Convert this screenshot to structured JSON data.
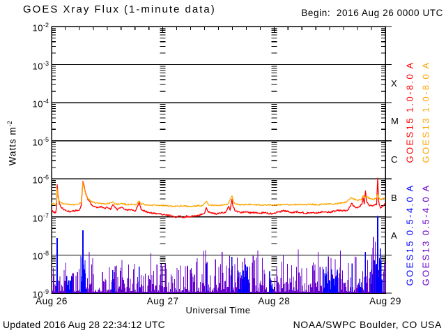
{
  "header": {
    "title": "GOES Xray Flux (1-minute data)",
    "begin": "Begin:  2016 Aug 26 0000 UTC"
  },
  "footer": {
    "updated": "Updated 2016 Aug 28 22:34:12 UTC",
    "source": "NOAA/SWPC Boulder, CO USA"
  },
  "chart_data": {
    "type": "line",
    "title": "GOES Xray Flux (1-minute data)",
    "begin": "2016 Aug 26 0000 UTC",
    "xlabel": "Universal Time",
    "ylabel_base": "Watts m",
    "ylabel_exp": "-2",
    "ylim": [
      1e-09,
      0.01
    ],
    "grid": "solid horizontal decade lines; dashed vertical day lines",
    "x_axis": {
      "total_hours": 72,
      "minor_tick_hours": 3,
      "days": [
        {
          "hour": 0,
          "label": "Aug 26"
        },
        {
          "hour": 24,
          "label": "Aug 27"
        },
        {
          "hour": 48,
          "label": "Aug 28"
        },
        {
          "hour": 72,
          "label": "Aug 29"
        }
      ]
    },
    "y_axis": {
      "exp_max": -2,
      "exp_min": -9,
      "tick_exponents": [
        -2,
        -3,
        -4,
        -5,
        -6,
        -7,
        -8,
        -9
      ]
    },
    "flux_classes": [
      {
        "label": "X",
        "center_exp": -3.5
      },
      {
        "label": "M",
        "center_exp": -4.5
      },
      {
        "label": "C",
        "center_exp": -5.5
      },
      {
        "label": "B",
        "center_exp": -6.5
      },
      {
        "label": "A",
        "center_exp": -7.5
      }
    ],
    "series": [
      {
        "name": "GOES15 1.0-8.0 A",
        "color": "#ff0000",
        "render": "line",
        "jitter_log": 0.022,
        "points": [
          [
            0,
            1.5e-07
          ],
          [
            0.3,
            1.35e-07
          ],
          [
            0.9,
            1.3e-07
          ],
          [
            1.05,
            1.7e-07
          ],
          [
            1.2,
            7e-07
          ],
          [
            1.35,
            4e-07
          ],
          [
            1.7,
            2.2e-07
          ],
          [
            2.2,
            1.7e-07
          ],
          [
            3,
            1.5e-07
          ],
          [
            4,
            1.4e-07
          ],
          [
            5,
            1.45e-07
          ],
          [
            6,
            1.5e-07
          ],
          [
            6.4,
            2e-07
          ],
          [
            6.75,
            8.5e-07
          ],
          [
            7,
            6.5e-07
          ],
          [
            7.4,
            4e-07
          ],
          [
            7.9,
            2.8e-07
          ],
          [
            8.5,
            2.2e-07
          ],
          [
            9.2,
            1.9e-07
          ],
          [
            10,
            1.75e-07
          ],
          [
            10.8,
            1.9e-07
          ],
          [
            11.4,
            1.7e-07
          ],
          [
            12,
            1.8e-07
          ],
          [
            12.7,
            1.6e-07
          ],
          [
            13.2,
            2.1e-07
          ],
          [
            13.6,
            1.8e-07
          ],
          [
            14.2,
            1.55e-07
          ],
          [
            15,
            1.8e-07
          ],
          [
            15.6,
            1.6e-07
          ],
          [
            16.4,
            1.5e-07
          ],
          [
            17.2,
            1.55e-07
          ],
          [
            18,
            1.4e-07
          ],
          [
            18.9,
            2.4e-07
          ],
          [
            19.3,
            1.6e-07
          ],
          [
            20,
            1.45e-07
          ],
          [
            21,
            1.3e-07
          ],
          [
            22,
            1.25e-07
          ],
          [
            23,
            1.2e-07
          ],
          [
            24,
            1.15e-07
          ],
          [
            25,
            1.1e-07
          ],
          [
            26,
            1.05e-07
          ],
          [
            26.8,
            9.8e-08
          ],
          [
            27.6,
            1.05e-07
          ],
          [
            28.4,
            9.6e-08
          ],
          [
            29.2,
            1.05e-07
          ],
          [
            30,
            1.02e-07
          ],
          [
            31,
            1.08e-07
          ],
          [
            32,
            1.12e-07
          ],
          [
            33,
            1.25e-07
          ],
          [
            33.4,
            1.75e-07
          ],
          [
            33.8,
            1.35e-07
          ],
          [
            34.6,
            1.25e-07
          ],
          [
            35.6,
            1.2e-07
          ],
          [
            36.6,
            1.28e-07
          ],
          [
            37.6,
            1.35e-07
          ],
          [
            38.2,
            1.9e-07
          ],
          [
            38.5,
            1.5e-07
          ],
          [
            38.9,
            2.9e-07
          ],
          [
            39.1,
            2e-07
          ],
          [
            39.5,
            1.5e-07
          ],
          [
            40.2,
            1.35e-07
          ],
          [
            41,
            1.3e-07
          ],
          [
            42,
            1.35e-07
          ],
          [
            43,
            1.28e-07
          ],
          [
            44,
            1.32e-07
          ],
          [
            45,
            1.26e-07
          ],
          [
            46,
            1.3e-07
          ],
          [
            47,
            1.22e-07
          ],
          [
            48,
            1.25e-07
          ],
          [
            49,
            1.35e-07
          ],
          [
            50,
            1.45e-07
          ],
          [
            51,
            1.38e-07
          ],
          [
            52,
            1.32e-07
          ],
          [
            53,
            1.38e-07
          ],
          [
            54,
            1.3e-07
          ],
          [
            55,
            1.26e-07
          ],
          [
            56,
            1.32e-07
          ],
          [
            57,
            1.27e-07
          ],
          [
            58,
            1.32e-07
          ],
          [
            59,
            1.38e-07
          ],
          [
            60,
            1.32e-07
          ],
          [
            61,
            1.42e-07
          ],
          [
            62,
            1.5e-07
          ],
          [
            63,
            1.46e-07
          ],
          [
            64,
            1.55e-07
          ],
          [
            64.8,
            2.3e-07
          ],
          [
            65.1,
            1.9e-07
          ],
          [
            65.7,
            1.75e-07
          ],
          [
            66.3,
            1.85e-07
          ],
          [
            66.9,
            2.1e-07
          ],
          [
            67.2,
            3.2e-07
          ],
          [
            67.45,
            2.2e-07
          ],
          [
            67.7,
            4.8e-07
          ],
          [
            67.95,
            2.6e-07
          ],
          [
            68.4,
            2.1e-07
          ],
          [
            69,
            1.95e-07
          ],
          [
            69.6,
            2.05e-07
          ],
          [
            70.1,
            2.1e-07
          ],
          [
            70.35,
            1.05e-06
          ],
          [
            70.55,
            2.6e-07
          ],
          [
            70.9,
            1.7e-07
          ],
          [
            71.3,
            1.9e-07
          ],
          [
            71.7,
            2.1e-07
          ],
          [
            72,
            2.3e-07
          ]
        ]
      },
      {
        "name": "GOES13 1.0-8.0 A",
        "color": "#ffa500",
        "render": "line",
        "jitter_log": 0.018,
        "points": [
          [
            0,
            2.3e-07
          ],
          [
            0.9,
            2.1e-07
          ],
          [
            1.05,
            2.4e-07
          ],
          [
            1.2,
            5.5e-07
          ],
          [
            1.4,
            3.2e-07
          ],
          [
            1.8,
            2.5e-07
          ],
          [
            2.5,
            2.2e-07
          ],
          [
            3.5,
            2.1e-07
          ],
          [
            4.5,
            2.1e-07
          ],
          [
            5.5,
            2.15e-07
          ],
          [
            6.4,
            2.4e-07
          ],
          [
            6.75,
            8e-07
          ],
          [
            7,
            6e-07
          ],
          [
            7.4,
            3.8e-07
          ],
          [
            8,
            2.9e-07
          ],
          [
            8.7,
            2.5e-07
          ],
          [
            9.5,
            2.3e-07
          ],
          [
            10.5,
            2.25e-07
          ],
          [
            11.5,
            2.2e-07
          ],
          [
            12.5,
            2.25e-07
          ],
          [
            13.2,
            2.5e-07
          ],
          [
            13.7,
            2.2e-07
          ],
          [
            14.5,
            2.15e-07
          ],
          [
            15.3,
            2.25e-07
          ],
          [
            16.2,
            2.1e-07
          ],
          [
            17.2,
            2.15e-07
          ],
          [
            18.2,
            2.1e-07
          ],
          [
            18.9,
            2.6e-07
          ],
          [
            19.4,
            2.2e-07
          ],
          [
            20.5,
            2.1e-07
          ],
          [
            22,
            2.05e-07
          ],
          [
            23.5,
            2e-07
          ],
          [
            25,
            1.95e-07
          ],
          [
            26.5,
            1.9e-07
          ],
          [
            28,
            1.95e-07
          ],
          [
            29.5,
            1.9e-07
          ],
          [
            31,
            1.95e-07
          ],
          [
            32.5,
            2e-07
          ],
          [
            33.4,
            2.6e-07
          ],
          [
            33.9,
            2.1e-07
          ],
          [
            35,
            2e-07
          ],
          [
            36.5,
            2.05e-07
          ],
          [
            38,
            2.15e-07
          ],
          [
            38.9,
            3.6e-07
          ],
          [
            39.2,
            2.5e-07
          ],
          [
            39.7,
            2.2e-07
          ],
          [
            41,
            2.1e-07
          ],
          [
            42.5,
            2.15e-07
          ],
          [
            44,
            2.1e-07
          ],
          [
            45.5,
            2.05e-07
          ],
          [
            47,
            2.1e-07
          ],
          [
            48.5,
            2.05e-07
          ],
          [
            50,
            2.15e-07
          ],
          [
            51.5,
            2.1e-07
          ],
          [
            53,
            2.15e-07
          ],
          [
            54.5,
            2.1e-07
          ],
          [
            56,
            2.15e-07
          ],
          [
            57.5,
            2.1e-07
          ],
          [
            59,
            2.2e-07
          ],
          [
            60.5,
            2.15e-07
          ],
          [
            62,
            2.3e-07
          ],
          [
            63.5,
            2.4e-07
          ],
          [
            64.6,
            3.2e-07
          ],
          [
            65.3,
            2.9e-07
          ],
          [
            66,
            2.7e-07
          ],
          [
            66.8,
            2.9e-07
          ],
          [
            67.2,
            3.6e-07
          ],
          [
            67.6,
            3.3e-07
          ],
          [
            68,
            3.5e-07
          ],
          [
            68.5,
            3.1e-07
          ],
          [
            69.2,
            2.9e-07
          ],
          [
            70,
            3e-07
          ],
          [
            70.35,
            4e-07
          ],
          [
            70.7,
            3e-07
          ],
          [
            71.1,
            2.8e-07
          ],
          [
            71.5,
            3.1e-07
          ],
          [
            72,
            3e-07
          ]
        ]
      },
      {
        "name": "GOES15 0.5-4.0 A",
        "color": "#0000ff",
        "render": "noise-patches",
        "floor": 1.05e-09,
        "patches": [
          [
            3.1,
            4.6,
            3e-09
          ],
          [
            6.3,
            7.5,
            1e-08
          ],
          [
            13.1,
            13.6,
            4e-09
          ],
          [
            40.2,
            42.6,
            6e-09
          ],
          [
            47,
            47.8,
            4e-09
          ],
          [
            58.6,
            61.9,
            5e-09
          ],
          [
            66.2,
            66.9,
            4e-09
          ],
          [
            68.9,
            71.4,
            9e-09
          ]
        ],
        "spikes": [
          [
            1.2,
            2.8e-08
          ],
          [
            6.75,
            4.5e-08
          ],
          [
            13.2,
            4e-09
          ],
          [
            18.9,
            5e-09
          ],
          [
            33.4,
            6e-09
          ],
          [
            38.9,
            9e-09
          ],
          [
            64.8,
            6e-09
          ],
          [
            67.7,
            1.2e-08
          ],
          [
            70.35,
            1.05e-07
          ],
          [
            70.9,
            1.5e-08
          ]
        ]
      },
      {
        "name": "GOES13 0.5-4.0 A",
        "color": "#6600cc",
        "render": "noise",
        "floor": 1.05e-09,
        "envelope": [
          [
            0,
            8e-09
          ],
          [
            1,
            1.2e-08
          ],
          [
            2,
            8e-09
          ],
          [
            6,
            9e-09
          ],
          [
            7,
            2.5e-08
          ],
          [
            8,
            1e-08
          ],
          [
            12,
            9e-09
          ],
          [
            18,
            8e-09
          ],
          [
            24,
            9e-09
          ],
          [
            30,
            1e-08
          ],
          [
            33,
            1.4e-08
          ],
          [
            34,
            9e-09
          ],
          [
            40,
            1.1e-08
          ],
          [
            46,
            9e-09
          ],
          [
            52,
            1.1e-08
          ],
          [
            58,
            9e-09
          ],
          [
            63,
            1.1e-08
          ],
          [
            66,
            1.2e-08
          ],
          [
            69,
            1.5e-08
          ],
          [
            69.6,
            3.2e-08
          ],
          [
            70.4,
            2.4e-08
          ],
          [
            71,
            1.4e-08
          ],
          [
            72,
            1.2e-08
          ]
        ],
        "spikes": [
          [
            8.1,
            1.2e-08
          ],
          [
            21.4,
            1.1e-08
          ],
          [
            33.2,
            1.35e-08
          ],
          [
            36.8,
            1.2e-08
          ],
          [
            44.5,
            1.3e-08
          ],
          [
            53.2,
            1.4e-08
          ],
          [
            57.5,
            1.2e-08
          ],
          [
            62.3,
            1.3e-08
          ],
          [
            69.4,
            3e-08
          ],
          [
            69.8,
            2.2e-08
          ]
        ]
      }
    ]
  }
}
